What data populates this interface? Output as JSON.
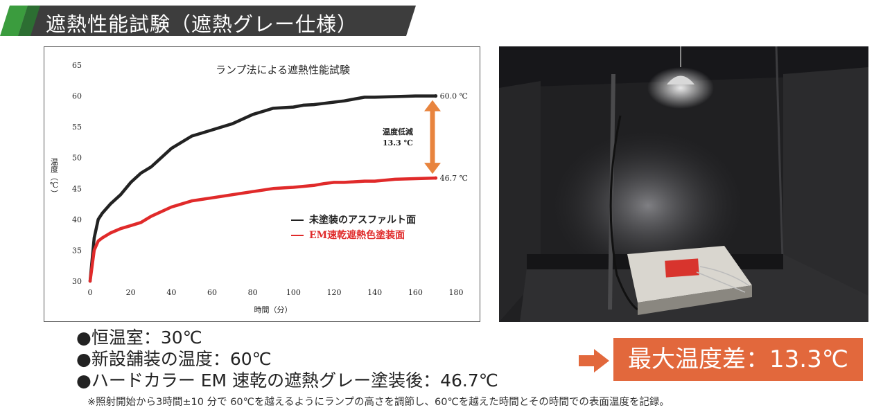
{
  "header": {
    "title": "遮熱性能試験（遮熱グレー仕様）"
  },
  "chart_data": {
    "type": "line",
    "title": "ランプ法による遮熱性能試験",
    "xlabel": "時間（分）",
    "ylabel": "温度（℃）",
    "xlim": [
      0,
      180
    ],
    "ylim": [
      30,
      65
    ],
    "xticks": [
      "0",
      "20",
      "40",
      "60",
      "80",
      "100",
      "120",
      "140",
      "160",
      "180"
    ],
    "yticks": [
      "30",
      "35",
      "40",
      "45",
      "50",
      "55",
      "60",
      "65"
    ],
    "legend_position": "center-right",
    "series": [
      {
        "name": "未塗装のアスファルト面",
        "color": "#222222",
        "x": [
          0,
          2,
          4,
          6,
          10,
          15,
          20,
          25,
          30,
          40,
          50,
          55,
          60,
          65,
          70,
          80,
          90,
          100,
          105,
          110,
          115,
          120,
          125,
          130,
          135,
          140,
          150,
          160,
          170
        ],
        "y": [
          30,
          37,
          40,
          41,
          42.5,
          44,
          46,
          47.5,
          48.5,
          51.5,
          53.5,
          54,
          54.5,
          55,
          55.5,
          57,
          58,
          58.2,
          58.5,
          58.6,
          58.8,
          59,
          59.2,
          59.5,
          59.8,
          59.8,
          59.9,
          60,
          60.0
        ]
      },
      {
        "name": "EM速乾遮熱色塗装面",
        "color": "#e02a2a",
        "x": [
          0,
          2,
          4,
          6,
          10,
          15,
          20,
          25,
          30,
          40,
          50,
          60,
          70,
          80,
          90,
          100,
          110,
          115,
          120,
          125,
          130,
          135,
          140,
          150,
          160,
          170
        ],
        "y": [
          30,
          35,
          36.5,
          37,
          37.8,
          38.5,
          39,
          39.5,
          40.5,
          42,
          43,
          43.5,
          44,
          44.5,
          45,
          45.2,
          45.5,
          45.8,
          46,
          46,
          46.1,
          46.2,
          46.2,
          46.5,
          46.6,
          46.7
        ]
      }
    ],
    "annotations": {
      "end_black": "60.0 ℃",
      "end_red": "46.7 ℃",
      "diff_line1": "温度低減",
      "diff_line2": "13.3 ℃"
    }
  },
  "conditions": [
    "●恒温室：30℃",
    "●新設舗装の温度：60℃",
    "●ハードカラー EM 速乾の遮熱グレー塗装後：46.7℃"
  ],
  "callout": {
    "text": "最大温度差：13.3℃"
  },
  "note": "※照射開始から3時間±10 分で 60℃を越えるようにランプの高さを調節し、60℃を越えた時間とその時間での表面温度を記録。",
  "colors": {
    "banner_green": "#2f7d3a",
    "banner_dark": "#3b3b3b",
    "callout_orange": "#e2683c",
    "diff_arrow": "#e8843e"
  }
}
